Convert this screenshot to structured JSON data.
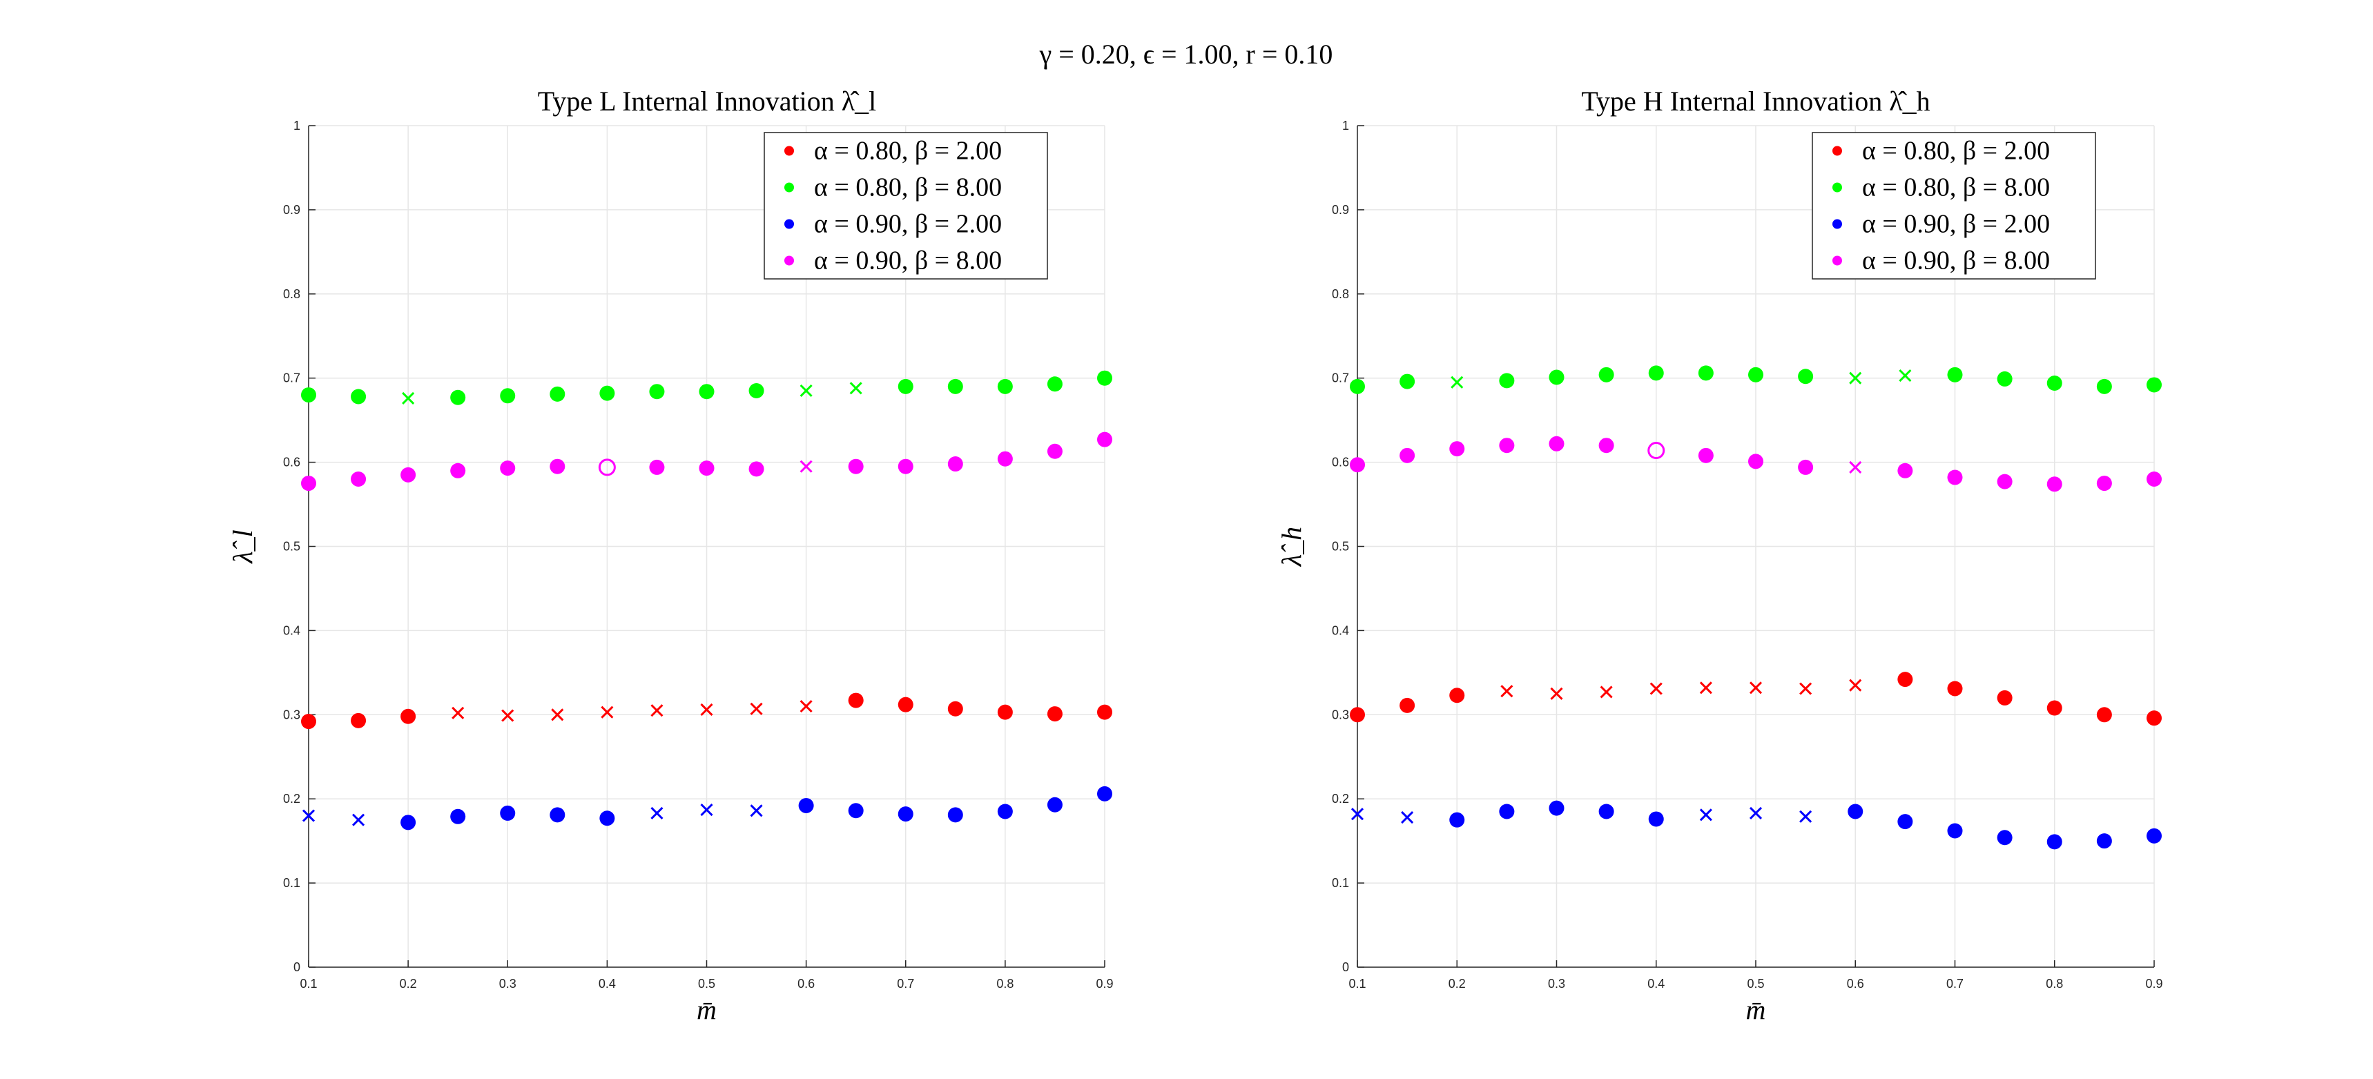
{
  "figure": {
    "suptitle": "γ = 0.20, ϵ = 1.00, r = 0.10"
  },
  "legend_entries": [
    "α = 0.80, β = 2.00",
    "α = 0.80, β = 8.00",
    "α = 0.90, β = 2.00",
    "α = 0.90, β = 8.00"
  ],
  "colors": {
    "alpha080_beta200": "#ff0000",
    "alpha080_beta800": "#00ff00",
    "alpha090_beta200": "#0000ff",
    "alpha090_beta800": "#ff00ff",
    "grid": "#e6e6e6",
    "axis": "#262626"
  },
  "markers": {
    "filled": "filled circle",
    "cross": "x",
    "open": "open circle"
  },
  "chart_data": [
    {
      "type": "scatter",
      "title": "Type L Internal Innovation λ̂_l",
      "xlabel": "m̄",
      "ylabel": "λ̂_l",
      "xlim": [
        0.1,
        0.9
      ],
      "ylim": [
        0,
        1
      ],
      "xticks": [
        "0.1",
        "0.2",
        "0.3",
        "0.4",
        "0.5",
        "0.6",
        "0.7",
        "0.8",
        "0.9"
      ],
      "yticks": [
        "0",
        "0.1",
        "0.2",
        "0.3",
        "0.4",
        "0.5",
        "0.6",
        "0.7",
        "0.8",
        "0.9",
        "1"
      ],
      "grid": true,
      "legend_position": "top-right",
      "x": [
        0.1,
        0.15,
        0.2,
        0.25,
        0.3,
        0.35,
        0.4,
        0.45,
        0.5,
        0.55,
        0.6,
        0.65,
        0.7,
        0.75,
        0.8,
        0.85,
        0.9
      ],
      "series": [
        {
          "name": "α = 0.80, β = 2.00",
          "color_key": "alpha080_beta200",
          "values": [
            0.292,
            0.293,
            0.298,
            0.302,
            0.299,
            0.3,
            0.303,
            0.305,
            0.306,
            0.307,
            0.31,
            0.317,
            0.312,
            0.307,
            0.303,
            0.301,
            0.303
          ],
          "markers": [
            "filled",
            "filled",
            "filled",
            "cross",
            "cross",
            "cross",
            "cross",
            "cross",
            "cross",
            "cross",
            "cross",
            "filled",
            "filled",
            "filled",
            "filled",
            "filled",
            "filled"
          ]
        },
        {
          "name": "α = 0.80, β = 8.00",
          "color_key": "alpha080_beta800",
          "values": [
            0.68,
            0.678,
            0.676,
            0.677,
            0.679,
            0.681,
            0.682,
            0.684,
            0.684,
            0.685,
            0.685,
            0.688,
            0.69,
            0.69,
            0.69,
            0.693,
            0.7
          ],
          "markers": [
            "filled",
            "filled",
            "cross",
            "filled",
            "filled",
            "filled",
            "filled",
            "filled",
            "filled",
            "filled",
            "cross",
            "cross",
            "filled",
            "filled",
            "filled",
            "filled",
            "filled"
          ]
        },
        {
          "name": "α = 0.90, β = 2.00",
          "color_key": "alpha090_beta200",
          "values": [
            0.18,
            0.175,
            0.172,
            0.179,
            0.183,
            0.181,
            0.177,
            0.183,
            0.187,
            0.186,
            0.192,
            0.186,
            0.182,
            0.181,
            0.185,
            0.193,
            0.206
          ],
          "markers": [
            "cross",
            "cross",
            "filled",
            "filled",
            "filled",
            "filled",
            "filled",
            "cross",
            "cross",
            "cross",
            "filled",
            "filled",
            "filled",
            "filled",
            "filled",
            "filled",
            "filled"
          ]
        },
        {
          "name": "α = 0.90, β = 8.00",
          "color_key": "alpha090_beta800",
          "values": [
            0.575,
            0.58,
            0.585,
            0.59,
            0.593,
            0.595,
            0.594,
            0.594,
            0.593,
            0.592,
            0.595,
            0.595,
            0.595,
            0.598,
            0.604,
            0.613,
            0.627
          ],
          "markers": [
            "filled",
            "filled",
            "filled",
            "filled",
            "filled",
            "filled",
            "open",
            "filled",
            "filled",
            "filled",
            "cross",
            "filled",
            "filled",
            "filled",
            "filled",
            "filled",
            "filled"
          ]
        }
      ]
    },
    {
      "type": "scatter",
      "title": "Type H Internal Innovation λ̂_h",
      "xlabel": "m̄",
      "ylabel": "λ̂_h",
      "xlim": [
        0.1,
        0.9
      ],
      "ylim": [
        0,
        1
      ],
      "xticks": [
        "0.1",
        "0.2",
        "0.3",
        "0.4",
        "0.5",
        "0.6",
        "0.7",
        "0.8",
        "0.9"
      ],
      "yticks": [
        "0",
        "0.1",
        "0.2",
        "0.3",
        "0.4",
        "0.5",
        "0.6",
        "0.7",
        "0.8",
        "0.9",
        "1"
      ],
      "grid": true,
      "legend_position": "top-right",
      "x": [
        0.1,
        0.15,
        0.2,
        0.25,
        0.3,
        0.35,
        0.4,
        0.45,
        0.5,
        0.55,
        0.6,
        0.65,
        0.7,
        0.75,
        0.8,
        0.85,
        0.9
      ],
      "series": [
        {
          "name": "α = 0.80, β = 2.00",
          "color_key": "alpha080_beta200",
          "values": [
            0.3,
            0.311,
            0.323,
            0.328,
            0.325,
            0.327,
            0.331,
            0.332,
            0.332,
            0.331,
            0.335,
            0.342,
            0.331,
            0.32,
            0.308,
            0.3,
            0.296
          ],
          "markers": [
            "filled",
            "filled",
            "filled",
            "cross",
            "cross",
            "cross",
            "cross",
            "cross",
            "cross",
            "cross",
            "cross",
            "filled",
            "filled",
            "filled",
            "filled",
            "filled",
            "filled"
          ]
        },
        {
          "name": "α = 0.80, β = 8.00",
          "color_key": "alpha080_beta800",
          "values": [
            0.69,
            0.696,
            0.695,
            0.697,
            0.701,
            0.704,
            0.706,
            0.706,
            0.704,
            0.702,
            0.7,
            0.703,
            0.704,
            0.699,
            0.694,
            0.69,
            0.692
          ],
          "markers": [
            "filled",
            "filled",
            "cross",
            "filled",
            "filled",
            "filled",
            "filled",
            "filled",
            "filled",
            "filled",
            "cross",
            "cross",
            "filled",
            "filled",
            "filled",
            "filled",
            "filled"
          ]
        },
        {
          "name": "α = 0.90, β = 2.00",
          "color_key": "alpha090_beta200",
          "values": [
            0.182,
            0.178,
            0.175,
            0.185,
            0.189,
            0.185,
            0.176,
            0.181,
            0.183,
            0.179,
            0.185,
            0.173,
            0.162,
            0.154,
            0.149,
            0.15,
            0.156
          ],
          "markers": [
            "cross",
            "cross",
            "filled",
            "filled",
            "filled",
            "filled",
            "filled",
            "cross",
            "cross",
            "cross",
            "filled",
            "filled",
            "filled",
            "filled",
            "filled",
            "filled",
            "filled"
          ]
        },
        {
          "name": "α = 0.90, β = 8.00",
          "color_key": "alpha090_beta800",
          "values": [
            0.597,
            0.608,
            0.616,
            0.62,
            0.622,
            0.62,
            0.614,
            0.608,
            0.601,
            0.594,
            0.594,
            0.59,
            0.582,
            0.577,
            0.574,
            0.575,
            0.58
          ],
          "markers": [
            "filled",
            "filled",
            "filled",
            "filled",
            "filled",
            "filled",
            "open",
            "filled",
            "filled",
            "filled",
            "cross",
            "filled",
            "filled",
            "filled",
            "filled",
            "filled",
            "filled"
          ]
        }
      ]
    }
  ]
}
